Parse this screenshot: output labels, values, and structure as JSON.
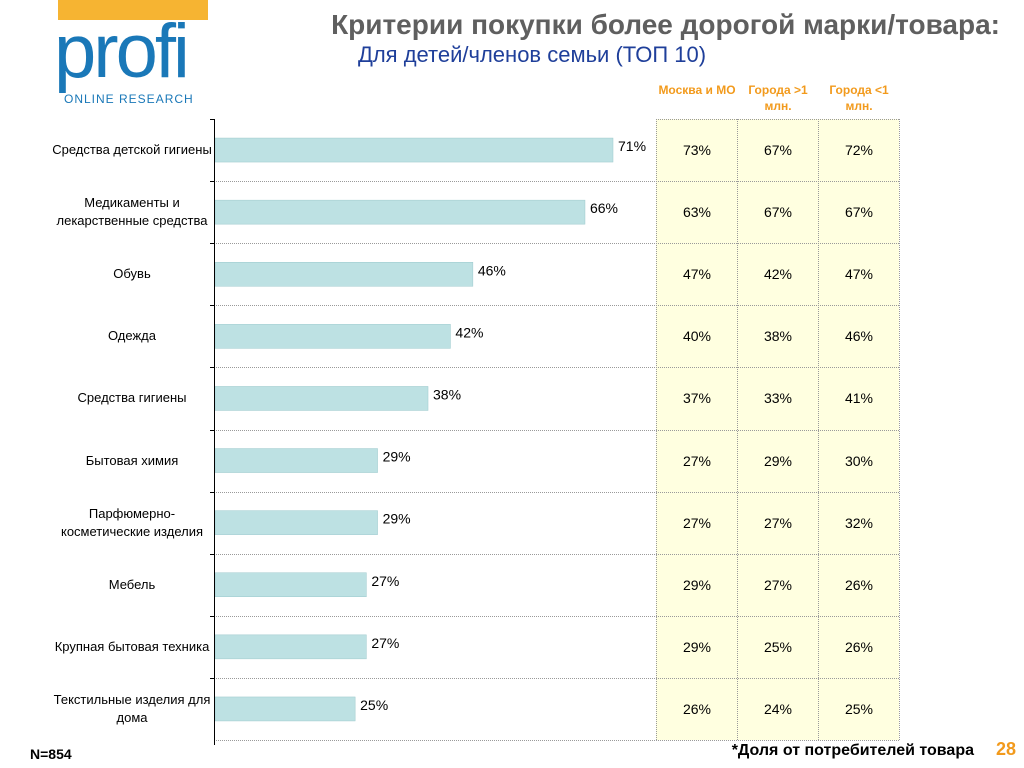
{
  "logo": {
    "word": "profi",
    "subtitle": "ONLINE RESEARCH"
  },
  "title": "Критерии покупки более дорогой марки/товара:",
  "subtitle": "Для детей/членов семьи (ТОП 10)",
  "colors": {
    "bar": "#bde1e3",
    "bar_stroke": "#9cc9cc",
    "table_bg": "#ffffe0",
    "header": "#f29a1c",
    "subtitle": "#1f3f9a",
    "brand_blue": "#1a78b8",
    "brand_orange": "#f6b432"
  },
  "table_headers": [
    "Москва и МО",
    "Города >1 млн.",
    "Города <1 млн."
  ],
  "chart_data": {
    "type": "bar",
    "orientation": "horizontal",
    "categories": [
      "Средства детской гигиены",
      "Медикаменты и лекарственные средства",
      "Обувь",
      "Одежда",
      "Средства гигиены",
      "Бытовая химия",
      "Парфюмерно-косметические изделия",
      "Мебель",
      "Крупная бытовая техника",
      "Текстильные изделия для дома"
    ],
    "values": [
      71,
      66,
      46,
      42,
      38,
      29,
      29,
      27,
      27,
      25
    ],
    "data_labels": [
      "71%",
      "66%",
      "46%",
      "42%",
      "38%",
      "29%",
      "29%",
      "27%",
      "27%",
      "25%"
    ],
    "unit": "%",
    "xlim": [
      0,
      80
    ],
    "grid": false
  },
  "table_rows": [
    [
      "73%",
      "67%",
      "72%"
    ],
    [
      "63%",
      "67%",
      "67%"
    ],
    [
      "47%",
      "42%",
      "47%"
    ],
    [
      "40%",
      "38%",
      "46%"
    ],
    [
      "37%",
      "33%",
      "41%"
    ],
    [
      "27%",
      "29%",
      "30%"
    ],
    [
      "27%",
      "27%",
      "32%"
    ],
    [
      "29%",
      "27%",
      "26%"
    ],
    [
      "29%",
      "25%",
      "26%"
    ],
    [
      "26%",
      "24%",
      "25%"
    ]
  ],
  "sample_size": "N=854",
  "footnote": "*Доля  от потребителей товара",
  "page_number": "28"
}
